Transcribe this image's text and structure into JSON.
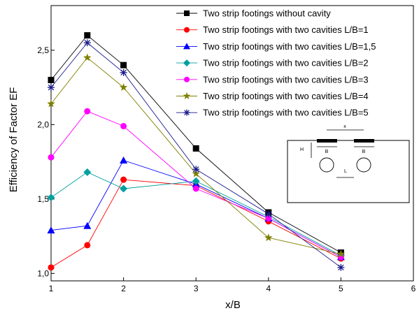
{
  "chart_data": {
    "type": "line",
    "xlabel": "x/B",
    "ylabel": "Efficiency of Factor EF",
    "xlim": [
      1,
      6
    ],
    "ylim": [
      0.95,
      2.8
    ],
    "x_ticks": [
      1,
      2,
      3,
      4,
      5,
      6
    ],
    "y_ticks": [
      {
        "value": 1.0,
        "label": "1,0"
      },
      {
        "value": 1.5,
        "label": "1,5"
      },
      {
        "value": 2.0,
        "label": "2,0"
      },
      {
        "value": 2.5,
        "label": "2,5"
      }
    ],
    "grid": false,
    "legend_position": "top-right",
    "x": [
      1,
      1.5,
      2,
      3,
      4,
      5
    ],
    "series": [
      {
        "name": "Two strip footings without cavity",
        "color": "#000000",
        "marker": "square",
        "values": [
          2.3,
          2.6,
          2.4,
          1.84,
          1.41,
          1.14
        ]
      },
      {
        "name": "Two strip footings with two cavities L/B=1",
        "color": "#ff0000",
        "marker": "circle",
        "values": [
          1.04,
          1.19,
          1.63,
          1.59,
          1.35,
          1.1
        ]
      },
      {
        "name": "Two strip footings with two cavities L/B=1,5",
        "color": "#0000ff",
        "marker": "triangle",
        "values": [
          1.29,
          1.32,
          1.76,
          1.6,
          1.37,
          1.11
        ]
      },
      {
        "name": "Two strip footings with two cavities L/B=2",
        "color": "#00a0a0",
        "marker": "diamond",
        "values": [
          1.51,
          1.68,
          1.57,
          1.62,
          1.38,
          1.12
        ]
      },
      {
        "name": "Two strip footings with two cavities L/B=3",
        "color": "#ff00ff",
        "marker": "circle",
        "values": [
          1.78,
          2.09,
          1.99,
          1.57,
          1.37,
          1.11
        ]
      },
      {
        "name": "Two strip footings with two cavities L/B=4",
        "color": "#808000",
        "marker": "star",
        "values": [
          2.14,
          2.45,
          2.25,
          1.67,
          1.24,
          1.13
        ]
      },
      {
        "name": "Two strip footings with two cavities L/B=5",
        "color": "#1a1a8c",
        "marker": "asterisk",
        "values": [
          2.25,
          2.55,
          2.35,
          1.7,
          1.4,
          1.04
        ]
      }
    ],
    "inset": {
      "label_x": "x",
      "label_h": "H",
      "label_b1": "B",
      "label_b2": "B",
      "label_l": "L"
    }
  }
}
